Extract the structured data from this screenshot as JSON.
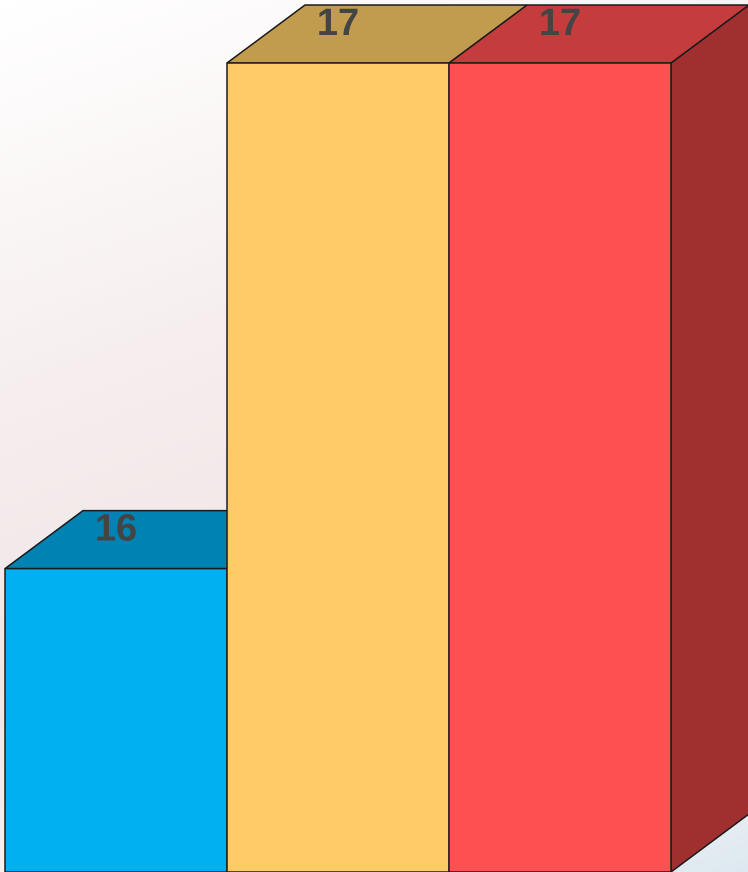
{
  "chart_data": {
    "type": "bar3d",
    "values": [
      16,
      17,
      17
    ],
    "colors": [
      "#00b0f0",
      "#fecb66",
      "#fe5050"
    ],
    "top_colors": [
      "#0083b3",
      "#c29c4e",
      "#c43c3c"
    ],
    "side_colors": [
      "#006d96",
      "#a88540",
      "#a03030"
    ],
    "ylim": [
      15.4,
      17
    ]
  }
}
